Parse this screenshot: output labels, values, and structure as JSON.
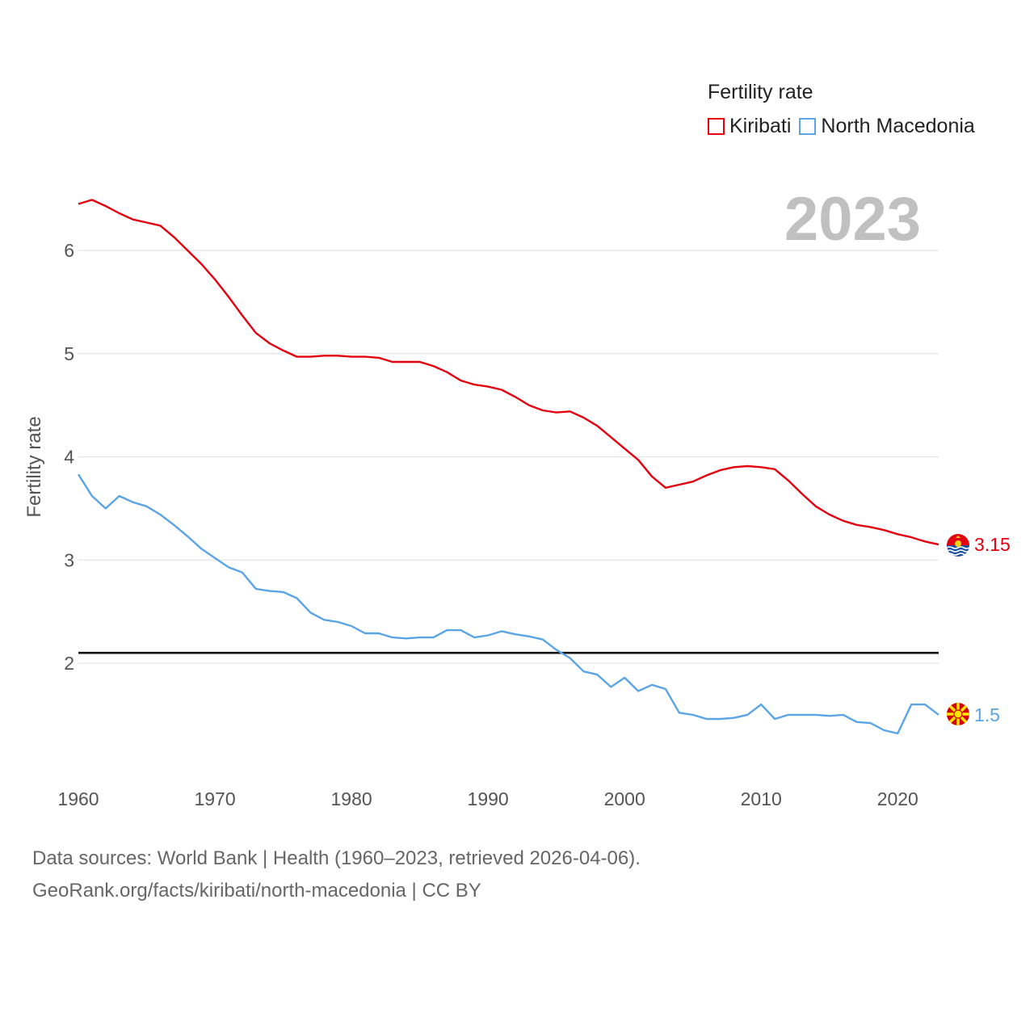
{
  "legend": {
    "title": "Fertility rate",
    "items": [
      {
        "name": "Kiribati",
        "color": "#e3000f"
      },
      {
        "name": "North Macedonia",
        "color": "#5ba4e5"
      }
    ]
  },
  "year_label": "2023",
  "footer": {
    "sources": "Data sources: World Bank | Health (1960–2023, retrieved 2026-04-06).",
    "link": "GeoRank.org/facts/kiribati/north-macedonia | CC BY"
  },
  "chart_data": {
    "type": "line",
    "ylabel": "Fertility rate",
    "xlabel": "",
    "xlim": [
      1960,
      2023
    ],
    "ylim": [
      1.0,
      6.7
    ],
    "xticks": [
      1960,
      1970,
      1980,
      1990,
      2000,
      2010,
      2020
    ],
    "yticks": [
      2,
      3,
      4,
      5,
      6
    ],
    "reference_line": {
      "value": 2.1,
      "color": "#111111"
    },
    "grid": true,
    "x": [
      1960,
      1961,
      1962,
      1963,
      1964,
      1965,
      1966,
      1967,
      1968,
      1969,
      1970,
      1971,
      1972,
      1973,
      1974,
      1975,
      1976,
      1977,
      1978,
      1979,
      1980,
      1981,
      1982,
      1983,
      1984,
      1985,
      1986,
      1987,
      1988,
      1989,
      1990,
      1991,
      1992,
      1993,
      1994,
      1995,
      1996,
      1997,
      1998,
      1999,
      2000,
      2001,
      2002,
      2003,
      2004,
      2005,
      2006,
      2007,
      2008,
      2009,
      2010,
      2011,
      2012,
      2013,
      2014,
      2015,
      2016,
      2017,
      2018,
      2019,
      2020,
      2021,
      2022,
      2023
    ],
    "series": [
      {
        "name": "Kiribati",
        "color": "#e3000f",
        "end_label": "3.15",
        "values": [
          6.45,
          6.49,
          6.43,
          6.36,
          6.3,
          6.27,
          6.24,
          6.13,
          6.0,
          5.87,
          5.72,
          5.55,
          5.37,
          5.2,
          5.1,
          5.03,
          4.97,
          4.97,
          4.98,
          4.98,
          4.97,
          4.97,
          4.96,
          4.92,
          4.92,
          4.92,
          4.88,
          4.82,
          4.74,
          4.7,
          4.68,
          4.65,
          4.58,
          4.5,
          4.45,
          4.43,
          4.44,
          4.38,
          4.3,
          4.19,
          4.08,
          3.97,
          3.81,
          3.7,
          3.73,
          3.76,
          3.82,
          3.87,
          3.9,
          3.91,
          3.9,
          3.88,
          3.77,
          3.64,
          3.52,
          3.44,
          3.38,
          3.34,
          3.32,
          3.29,
          3.25,
          3.22,
          3.18,
          3.15
        ]
      },
      {
        "name": "North Macedonia",
        "color": "#5ba4e5",
        "end_label": "1.5",
        "values": [
          3.83,
          3.62,
          3.5,
          3.62,
          3.56,
          3.52,
          3.44,
          3.34,
          3.23,
          3.11,
          3.02,
          2.93,
          2.88,
          2.72,
          2.7,
          2.69,
          2.63,
          2.49,
          2.42,
          2.4,
          2.36,
          2.29,
          2.29,
          2.25,
          2.24,
          2.25,
          2.25,
          2.32,
          2.32,
          2.25,
          2.27,
          2.31,
          2.28,
          2.26,
          2.23,
          2.13,
          2.05,
          1.92,
          1.89,
          1.77,
          1.86,
          1.73,
          1.79,
          1.75,
          1.52,
          1.5,
          1.46,
          1.46,
          1.47,
          1.5,
          1.6,
          1.46,
          1.5,
          1.5,
          1.5,
          1.49,
          1.5,
          1.43,
          1.42,
          1.35,
          1.32,
          1.6,
          1.6,
          1.5
        ]
      }
    ]
  }
}
